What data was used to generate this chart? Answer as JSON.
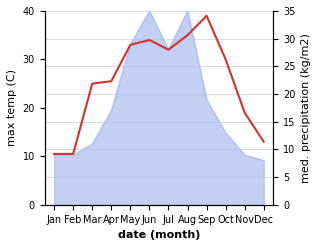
{
  "months": [
    "Jan",
    "Feb",
    "Mar",
    "Apr",
    "May",
    "Jun",
    "Jul",
    "Aug",
    "Sep",
    "Oct",
    "Nov",
    "Dec"
  ],
  "max_temp": [
    10.5,
    10.5,
    25.0,
    25.5,
    33.0,
    34.0,
    32.0,
    35.0,
    39.0,
    30.0,
    19.0,
    13.0
  ],
  "precipitation": [
    9,
    9,
    11,
    17,
    29,
    35,
    28,
    35,
    19,
    13,
    9,
    8
  ],
  "temp_color": "#cc3333",
  "precip_color": "#aabbee",
  "left_ylim": [
    0,
    40
  ],
  "right_ylim": [
    0,
    35
  ],
  "left_ylabel": "max temp (C)",
  "right_ylabel": "med. precipitation (kg/m2)",
  "xlabel": "date (month)",
  "bg_color": "#ffffff",
  "grid_color": "#cccccc",
  "tick_fontsize": 7,
  "label_fontsize": 8,
  "left_yticks": [
    0,
    10,
    20,
    30,
    40
  ],
  "right_yticks": [
    0,
    5,
    10,
    15,
    20,
    25,
    30,
    35
  ]
}
